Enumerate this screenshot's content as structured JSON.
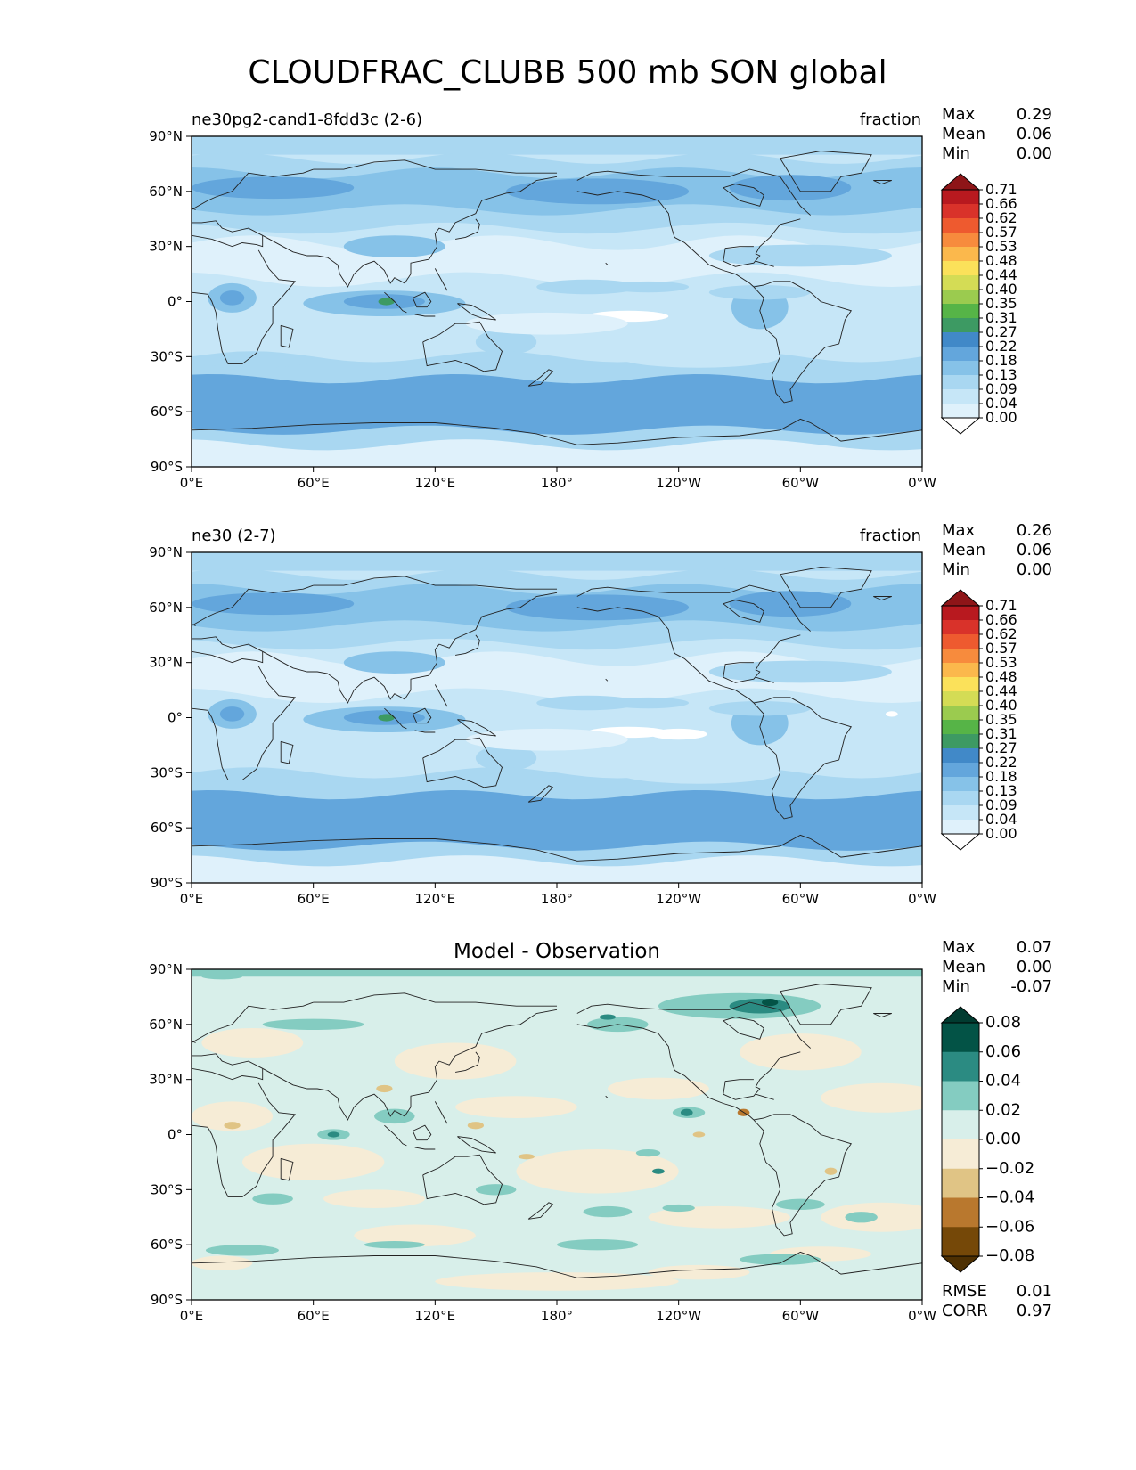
{
  "title": "CLOUDFRAC_CLUBB 500 mb SON global",
  "lon_ticks": [
    "0°E",
    "60°E",
    "120°E",
    "180°",
    "120°W",
    "60°W",
    "0°W"
  ],
  "lat_ticks": [
    "90°N",
    "60°N",
    "30°N",
    "0°",
    "30°S",
    "60°S",
    "90°S"
  ],
  "stat_labels": {
    "max": "Max",
    "mean": "Mean",
    "min": "Min",
    "rmse": "RMSE",
    "corr": "CORR"
  },
  "panels": [
    {
      "id": "test",
      "left_title": "ne30pg2-cand1-8fdd3c (2-6)",
      "right_title": "fraction",
      "center_title": "",
      "stats": {
        "max": "0.29",
        "mean": "0.06",
        "min": "0.00"
      }
    },
    {
      "id": "ref",
      "left_title": "ne30 (2-7)",
      "right_title": "fraction",
      "center_title": "",
      "stats": {
        "max": "0.26",
        "mean": "0.06",
        "min": "0.00"
      }
    },
    {
      "id": "diff",
      "left_title": "",
      "right_title": "",
      "center_title": "Model - Observation",
      "stats": {
        "max": "0.07",
        "mean": "0.00",
        "min": "-0.07",
        "rmse": "0.01",
        "corr": "0.97"
      }
    }
  ],
  "colorbars": {
    "fraction": {
      "ticks": [
        "0.00",
        "0.04",
        "0.09",
        "0.13",
        "0.18",
        "0.22",
        "0.27",
        "0.31",
        "0.35",
        "0.40",
        "0.44",
        "0.48",
        "0.53",
        "0.57",
        "0.62",
        "0.66",
        "0.71"
      ],
      "colors": [
        "#ffffff",
        "#dff1fb",
        "#c6e6f7",
        "#a9d7f1",
        "#86c2e8",
        "#63a6dc",
        "#4189c8",
        "#3d9a63",
        "#56b447",
        "#9bcb4f",
        "#d4dc55",
        "#fbe15a",
        "#fbb84c",
        "#f78b3d",
        "#ee5a2f",
        "#d9322a",
        "#b8191f",
        "#8e1518"
      ]
    },
    "diff": {
      "ticks": [
        "−0.08",
        "−0.06",
        "−0.04",
        "−0.02",
        "0.00",
        "0.02",
        "0.04",
        "0.06",
        "0.08"
      ],
      "colors": [
        "#4e3002",
        "#754808",
        "#b9782e",
        "#e0c485",
        "#f6ecd6",
        "#d8efea",
        "#84ccc1",
        "#2b8b82",
        "#035346",
        "#013b30"
      ]
    }
  },
  "chart_data": [
    {
      "type": "heatmap",
      "title": "ne30pg2-cand1-8fdd3c (2-6)",
      "units": "fraction",
      "x_range": [
        "0°E",
        "0°W"
      ],
      "y_range": [
        "90°S",
        "90°N"
      ],
      "stats": {
        "max": 0.29,
        "mean": 0.06,
        "min": 0.0
      },
      "levels": [
        0.0,
        0.04,
        0.09,
        0.13,
        0.18,
        0.22,
        0.27,
        0.31,
        0.35,
        0.4,
        0.44,
        0.48,
        0.53,
        0.57,
        0.62,
        0.66,
        0.71
      ]
    },
    {
      "type": "heatmap",
      "title": "ne30 (2-7)",
      "units": "fraction",
      "x_range": [
        "0°E",
        "0°W"
      ],
      "y_range": [
        "90°S",
        "90°N"
      ],
      "stats": {
        "max": 0.26,
        "mean": 0.06,
        "min": 0.0
      },
      "levels": [
        0.0,
        0.04,
        0.09,
        0.13,
        0.18,
        0.22,
        0.27,
        0.31,
        0.35,
        0.4,
        0.44,
        0.48,
        0.53,
        0.57,
        0.62,
        0.66,
        0.71
      ]
    },
    {
      "type": "heatmap",
      "title": "Model - Observation",
      "x_range": [
        "0°E",
        "0°W"
      ],
      "y_range": [
        "90°S",
        "90°N"
      ],
      "stats": {
        "max": 0.07,
        "mean": 0.0,
        "min": -0.07,
        "rmse": 0.01,
        "corr": 0.97
      },
      "levels": [
        -0.08,
        -0.06,
        -0.04,
        -0.02,
        0.0,
        0.02,
        0.04,
        0.06,
        0.08
      ]
    }
  ]
}
